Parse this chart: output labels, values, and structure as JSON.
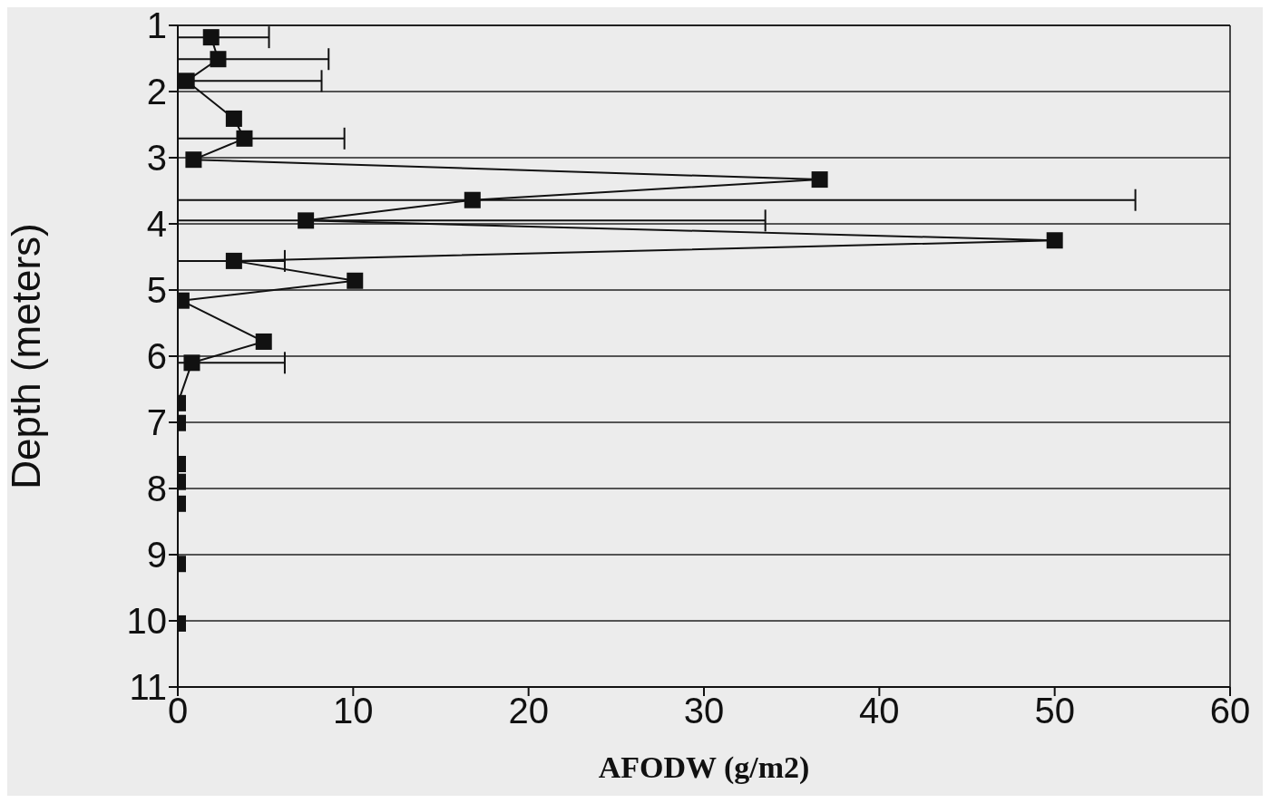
{
  "chart_data": {
    "type": "line",
    "xlabel": "AFODW (g/m2)",
    "ylabel": "Depth (meters)",
    "x": [
      1.9,
      2.3,
      0.5,
      3.2,
      3.8,
      0.9,
      36.6,
      16.8,
      7.3,
      50,
      3.2,
      10.1,
      0.2,
      4.9,
      0.8,
      0,
      0,
      0,
      0,
      0,
      0,
      0
    ],
    "values": [
      1.18,
      1.51,
      1.84,
      2.41,
      2.71,
      3.03,
      3.33,
      3.64,
      3.95,
      4.25,
      4.56,
      4.86,
      5.16,
      5.78,
      6.1,
      6.71,
      7.01,
      7.63,
      7.9,
      8.23,
      9.14,
      10.04
    ],
    "xerrors": [
      [
        0,
        5.2
      ],
      [
        0,
        8.6
      ],
      [
        0,
        8.2
      ],
      null,
      [
        0,
        9.5
      ],
      null,
      null,
      [
        0,
        54.6
      ],
      [
        0,
        33.5
      ],
      null,
      [
        0,
        6.1
      ],
      null,
      null,
      null,
      [
        0,
        6.1
      ],
      null,
      null,
      null,
      null,
      null,
      null,
      null
    ],
    "color": "#111111",
    "marker": "square",
    "line_style": "solid",
    "xlim": [
      0,
      60
    ],
    "xticks": [
      0,
      10,
      20,
      30,
      40,
      50,
      60
    ],
    "ylim": [
      11,
      1
    ],
    "yticks": [
      1,
      2,
      3,
      4,
      5,
      6,
      7,
      8,
      9,
      10,
      11
    ],
    "grid": "y"
  }
}
